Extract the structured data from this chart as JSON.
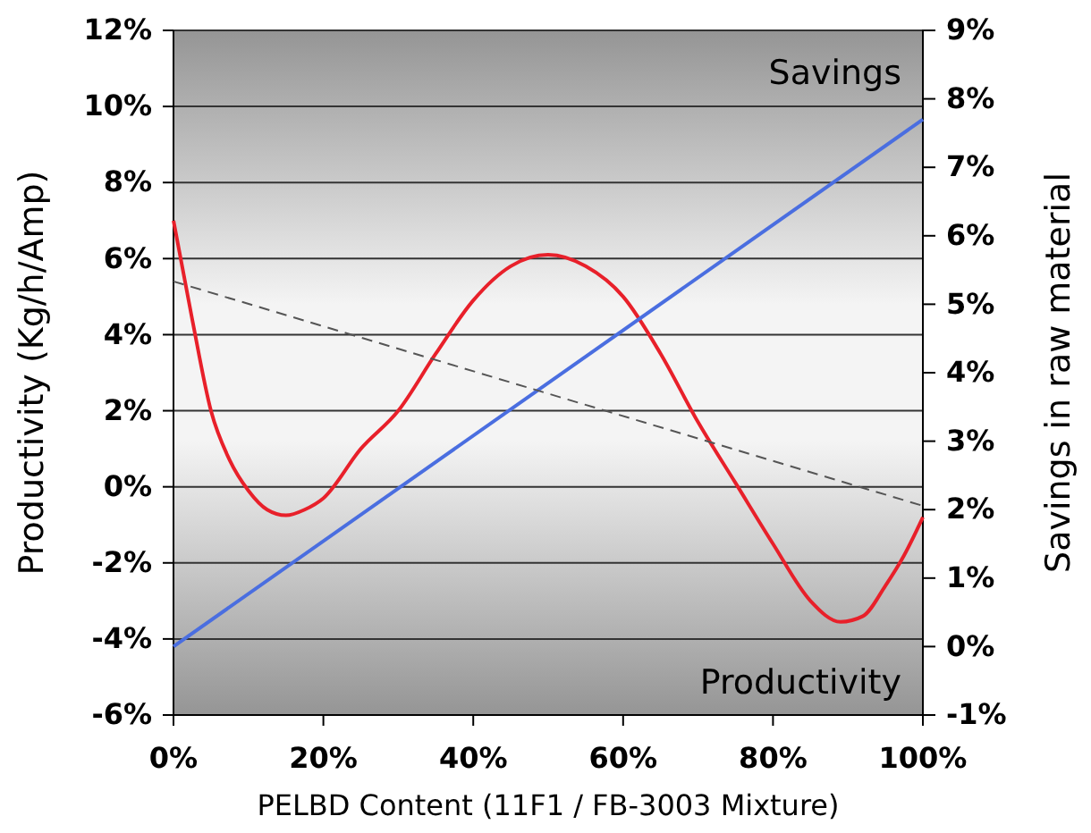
{
  "chart_data": {
    "type": "line",
    "xlabel": "PELBD Content (11F1 / FB-3003 Mixture)",
    "ylabel": "Productivity (Kg/h/Amp)",
    "y2label": "Savings in raw material",
    "annotations": [
      "Savings",
      "Productivity"
    ],
    "xlim": [
      0,
      100
    ],
    "xticks": [
      {
        "value": 0,
        "label": "0%"
      },
      {
        "value": 20,
        "label": "20%"
      },
      {
        "value": 40,
        "label": "40%"
      },
      {
        "value": 60,
        "label": "60%"
      },
      {
        "value": 80,
        "label": "80%"
      },
      {
        "value": 100,
        "label": "100%"
      }
    ],
    "ylim": [
      -6,
      12
    ],
    "yticks": [
      {
        "value": -6,
        "label": "-6%"
      },
      {
        "value": -4,
        "label": "-4%"
      },
      {
        "value": -2,
        "label": "-2%"
      },
      {
        "value": 0,
        "label": "0%"
      },
      {
        "value": 2,
        "label": "2%"
      },
      {
        "value": 4,
        "label": "4%"
      },
      {
        "value": 6,
        "label": "6%"
      },
      {
        "value": 8,
        "label": "8%"
      },
      {
        "value": 10,
        "label": "10%"
      },
      {
        "value": 12,
        "label": "12%"
      }
    ],
    "y2lim": [
      -1,
      9
    ],
    "y2ticks": [
      {
        "value": -1,
        "label": "-1%"
      },
      {
        "value": 0,
        "label": "0%"
      },
      {
        "value": 1,
        "label": "1%"
      },
      {
        "value": 2,
        "label": "2%"
      },
      {
        "value": 3,
        "label": "3%"
      },
      {
        "value": 4,
        "label": "4%"
      },
      {
        "value": 5,
        "label": "5%"
      },
      {
        "value": 6,
        "label": "6%"
      },
      {
        "value": 7,
        "label": "7%"
      },
      {
        "value": 8,
        "label": "8%"
      },
      {
        "value": 9,
        "label": "9%"
      }
    ],
    "grid": "y",
    "marker": "none",
    "series": [
      {
        "color": "#e8202a",
        "x": [
          0,
          2.5,
          5,
          7.5,
          10,
          12.5,
          15,
          17.5,
          20,
          25,
          30,
          35,
          40,
          45,
          50,
          55,
          60,
          65,
          70,
          75,
          80,
          85,
          89,
          92,
          95,
          97.5,
          100
        ],
        "values": [
          7.0,
          4.4,
          2.0,
          0.7,
          -0.1,
          -0.6,
          -0.75,
          -0.6,
          -0.3,
          1.0,
          2.0,
          3.5,
          4.9,
          5.8,
          6.1,
          5.8,
          5.0,
          3.5,
          1.7,
          0.1,
          -1.5,
          -3.0,
          -3.55,
          -3.4,
          -2.6,
          -1.8,
          -0.8
        ]
      },
      {
        "color": "#4a6ee0",
        "axis": "y2",
        "x": [
          0,
          100
        ],
        "values": [
          0,
          7.7
        ]
      },
      {
        "color": "#555555",
        "line_style": "dashed",
        "x": [
          0,
          100
        ],
        "values": [
          5.4,
          -0.5
        ]
      }
    ]
  }
}
